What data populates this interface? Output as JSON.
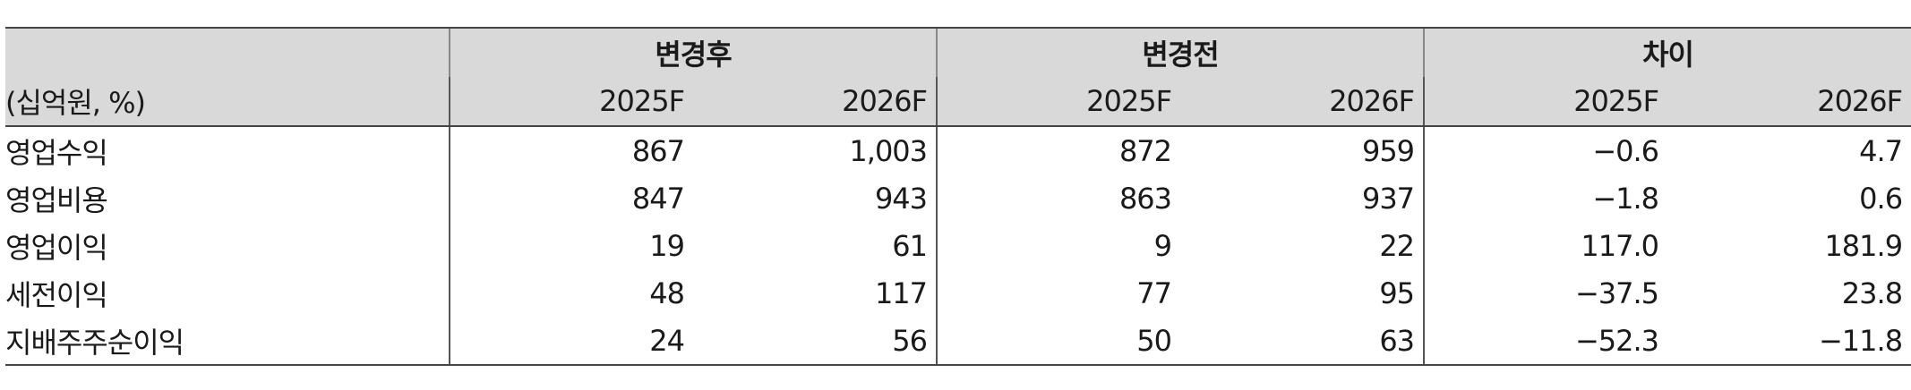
{
  "table": {
    "unit_label": "(십억원, %)",
    "groups": [
      "변경후",
      "변경전",
      "차이"
    ],
    "years": [
      "2025F",
      "2026F",
      "2025F",
      "2026F",
      "2025F",
      "2026F"
    ],
    "rows": [
      {
        "label": "영업수익",
        "values": [
          "867",
          "1,003",
          "872",
          "959",
          "−0.6",
          "4.7"
        ]
      },
      {
        "label": "영업비용",
        "values": [
          "847",
          "943",
          "863",
          "937",
          "−1.8",
          "0.6"
        ]
      },
      {
        "label": "영업이익",
        "values": [
          "19",
          "61",
          "9",
          "22",
          "117.0",
          "181.9"
        ]
      },
      {
        "label": "세전이익",
        "values": [
          "48",
          "117",
          "77",
          "95",
          "−37.5",
          "23.8"
        ]
      },
      {
        "label": "지배주주순이익",
        "values": [
          "24",
          "56",
          "50",
          "63",
          "−52.3",
          "−11.8"
        ]
      }
    ]
  }
}
